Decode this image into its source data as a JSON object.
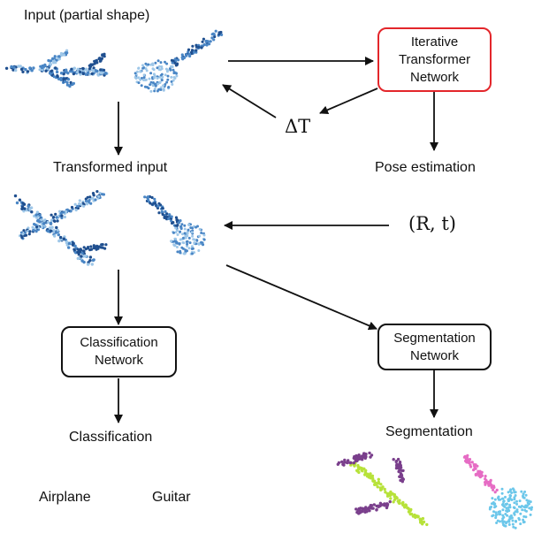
{
  "labels": {
    "input": "Input (partial shape)",
    "transformed_input": "Transformed input",
    "pose_estimation": "Pose estimation",
    "classification": "Classification",
    "segmentation": "Segmentation",
    "airplane": "Airplane",
    "guitar": "Guitar"
  },
  "boxes": {
    "itn": [
      "Iterative",
      "Transformer",
      "Network"
    ],
    "classification_network": [
      "Classification",
      "Network"
    ],
    "segmentation_network": [
      "Segmentation",
      "Network"
    ]
  },
  "math": {
    "delta_t": "ΔT",
    "rt": "(R, t)"
  },
  "colors": {
    "itn_border": "#e3262b",
    "blue_dark": "#1f4f8f",
    "blue_mid": "#4a86c5",
    "blue_light": "#9ec7e8",
    "seg_purple": "#7a3f8c",
    "seg_lime": "#b7e23a",
    "seg_pink": "#e66cc4",
    "seg_cyan": "#6cc7ea"
  }
}
